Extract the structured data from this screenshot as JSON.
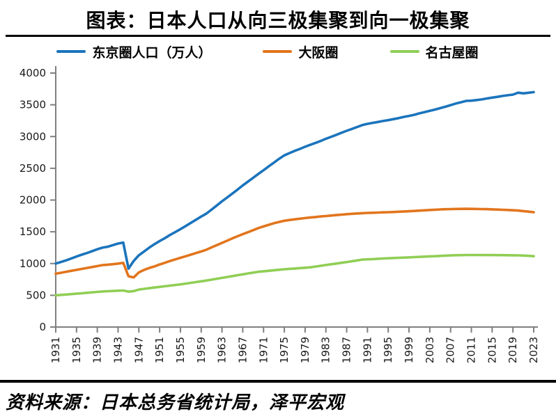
{
  "page": {
    "title": "图表：日本人口从向三极集聚到向一极集聚",
    "source": "资料来源：日本总务省统计局，泽平宏观"
  },
  "colors": {
    "tokyo_blue": "#1B74BC",
    "osaka_orange": "#E2751D",
    "nagoya_green": "#90CE55",
    "axis_gray": "#7F7F7F",
    "rule_black": "#000000"
  },
  "chart_data": {
    "type": "line",
    "title": "图表：日本人口从向三极集聚到向一极集聚",
    "xlabel": "",
    "ylabel": "",
    "unit": "万人",
    "x_start": 1931,
    "x_end": 2023,
    "x_tick_labels": [
      "1931",
      "1935",
      "1939",
      "1943",
      "1947",
      "1951",
      "1955",
      "1959",
      "1963",
      "1967",
      "1971",
      "1975",
      "1979",
      "1983",
      "1987",
      "1991",
      "1995",
      "1999",
      "2003",
      "2007",
      "2011",
      "2015",
      "2019",
      "2023"
    ],
    "ylim": [
      0,
      4000
    ],
    "y_ticks": [
      0,
      500,
      1000,
      1500,
      2000,
      2500,
      3000,
      3500,
      4000
    ],
    "grid": false,
    "legend_position": "top",
    "series": [
      {
        "name": "东京圈人口（万人）",
        "color": "#1B74BC",
        "values": [
          1000,
          1025,
          1050,
          1080,
          1110,
          1140,
          1165,
          1195,
          1225,
          1250,
          1265,
          1290,
          1315,
          1330,
          920,
          1040,
          1130,
          1190,
          1250,
          1305,
          1355,
          1400,
          1450,
          1495,
          1542,
          1590,
          1640,
          1690,
          1740,
          1786,
          1850,
          1915,
          1980,
          2040,
          2102,
          2165,
          2230,
          2290,
          2350,
          2411,
          2470,
          2530,
          2590,
          2650,
          2704,
          2740,
          2775,
          2805,
          2840,
          2870,
          2900,
          2930,
          2965,
          2995,
          3027,
          3060,
          3090,
          3120,
          3150,
          3180,
          3200,
          3215,
          3230,
          3245,
          3258,
          3275,
          3290,
          3310,
          3325,
          3342,
          3365,
          3385,
          3405,
          3425,
          3448,
          3470,
          3495,
          3520,
          3540,
          3562,
          3565,
          3575,
          3585,
          3600,
          3613,
          3625,
          3640,
          3650,
          3660,
          3691,
          3680,
          3690,
          3700
        ]
      },
      {
        "name": "大阪圈",
        "color": "#E2751D",
        "values": [
          840,
          855,
          870,
          885,
          900,
          915,
          930,
          945,
          960,
          975,
          982,
          990,
          1000,
          1010,
          800,
          780,
          860,
          900,
          930,
          955,
          985,
          1012,
          1040,
          1065,
          1090,
          1115,
          1140,
          1165,
          1190,
          1218,
          1255,
          1290,
          1325,
          1360,
          1396,
          1430,
          1462,
          1494,
          1526,
          1558,
          1585,
          1610,
          1635,
          1655,
          1673,
          1685,
          1696,
          1706,
          1716,
          1725,
          1733,
          1741,
          1748,
          1756,
          1763,
          1770,
          1777,
          1783,
          1788,
          1793,
          1797,
          1800,
          1803,
          1806,
          1808,
          1812,
          1816,
          1820,
          1824,
          1828,
          1833,
          1838,
          1843,
          1848,
          1852,
          1855,
          1858,
          1860,
          1861,
          1862,
          1861,
          1860,
          1858,
          1856,
          1853,
          1850,
          1847,
          1843,
          1839,
          1834,
          1826,
          1818,
          1808
        ]
      },
      {
        "name": "名古屋圈",
        "color": "#90CE55",
        "values": [
          500,
          506,
          512,
          518,
          525,
          532,
          539,
          546,
          553,
          560,
          564,
          568,
          572,
          575,
          558,
          565,
          590,
          602,
          612,
          622,
          632,
          642,
          652,
          662,
          672,
          684,
          696,
          708,
          720,
          732,
          746,
          760,
          774,
          788,
          802,
          816,
          830,
          844,
          857,
          870,
          878,
          886,
          894,
          902,
          910,
          916,
          922,
          928,
          934,
          940,
          952,
          964,
          976,
          988,
          1000,
          1012,
          1024,
          1036,
          1049,
          1062,
          1066,
          1070,
          1075,
          1079,
          1083,
          1087,
          1090,
          1094,
          1097,
          1101,
          1105,
          1109,
          1113,
          1116,
          1120,
          1124,
          1128,
          1131,
          1132,
          1134,
          1134,
          1134,
          1133,
          1133,
          1133,
          1132,
          1132,
          1131,
          1130,
          1129,
          1125,
          1121,
          1116
        ]
      }
    ]
  }
}
